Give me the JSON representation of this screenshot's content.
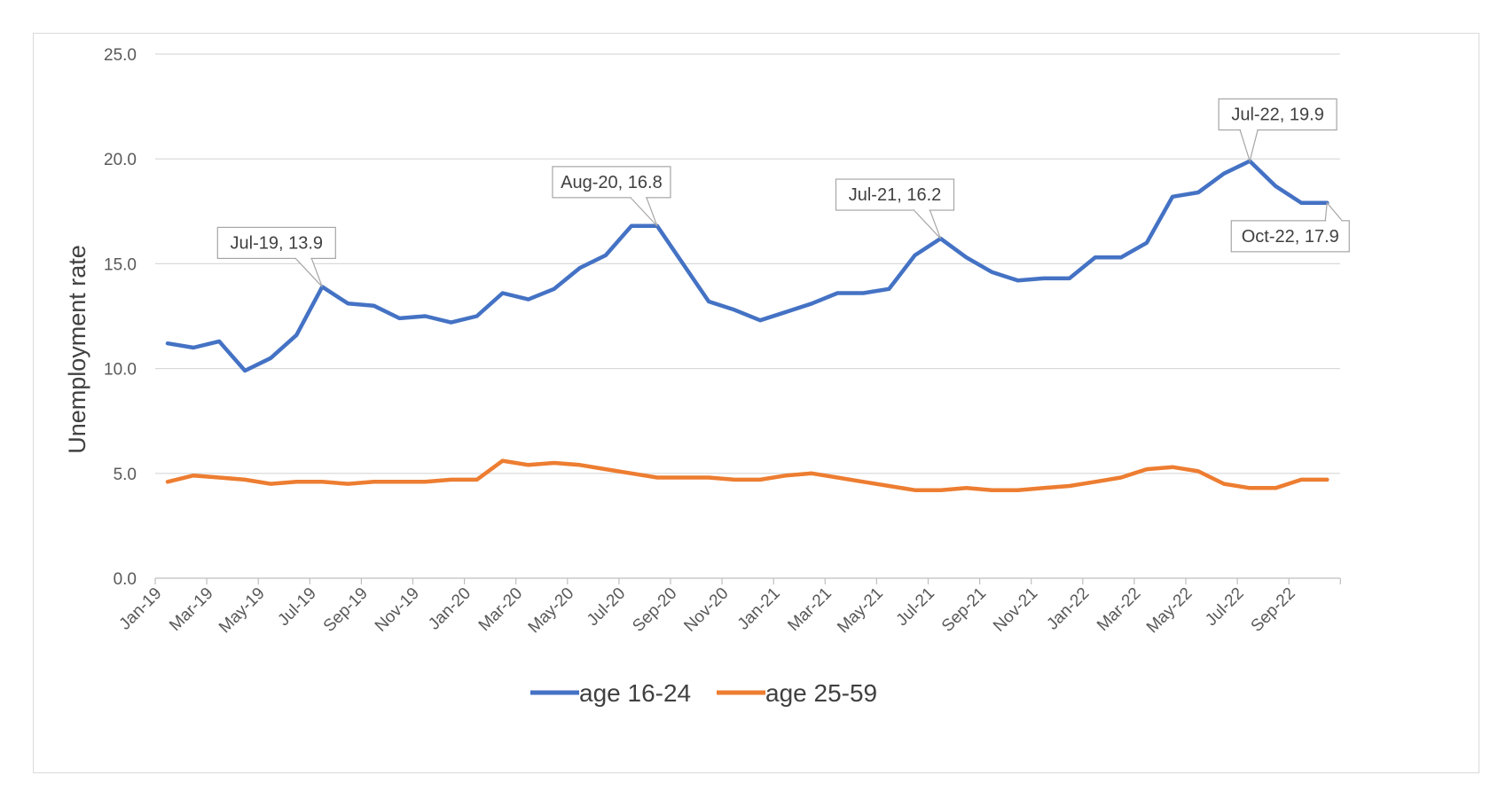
{
  "chart_data": {
    "type": "line",
    "title": "",
    "xlabel": "",
    "ylabel": "Unemployment rate",
    "ylim": [
      0,
      25
    ],
    "yticks": [
      "0.0",
      "5.0",
      "10.0",
      "15.0",
      "20.0",
      "25.0"
    ],
    "grid": "horizontal",
    "legend_position": "bottom",
    "x": [
      "Jan-19",
      "Feb-19",
      "Mar-19",
      "Apr-19",
      "May-19",
      "Jun-19",
      "Jul-19",
      "Aug-19",
      "Sep-19",
      "Oct-19",
      "Nov-19",
      "Dec-19",
      "Jan-20",
      "Feb-20",
      "Mar-20",
      "Apr-20",
      "May-20",
      "Jun-20",
      "Jul-20",
      "Aug-20",
      "Sep-20",
      "Oct-20",
      "Nov-20",
      "Dec-20",
      "Jan-21",
      "Feb-21",
      "Mar-21",
      "Apr-21",
      "May-21",
      "Jun-21",
      "Jul-21",
      "Aug-21",
      "Sep-21",
      "Oct-21",
      "Nov-21",
      "Dec-21",
      "Jan-22",
      "Feb-22",
      "Mar-22",
      "Apr-22",
      "May-22",
      "Jun-22",
      "Jul-22",
      "Aug-22",
      "Sep-22",
      "Oct-22"
    ],
    "xtick_labels": [
      "Jan-19",
      "Mar-19",
      "May-19",
      "Jul-19",
      "Sep-19",
      "Nov-19",
      "Jan-20",
      "Mar-20",
      "May-20",
      "Jul-20",
      "Sep-20",
      "Nov-20",
      "Jan-21",
      "Mar-21",
      "May-21",
      "Jul-21",
      "Sep-21",
      "Nov-21",
      "Jan-22",
      "Mar-22",
      "May-22",
      "Jul-22",
      "Sep-22"
    ],
    "series": [
      {
        "name": "age 16-24",
        "color": "#4472c4",
        "values": [
          11.2,
          11.0,
          11.3,
          9.9,
          10.5,
          11.6,
          13.9,
          13.1,
          13.0,
          12.4,
          12.5,
          12.2,
          12.5,
          13.6,
          13.3,
          13.8,
          14.8,
          15.4,
          16.8,
          16.8,
          15.0,
          13.2,
          12.8,
          12.3,
          12.7,
          13.1,
          13.6,
          13.6,
          13.8,
          15.4,
          16.2,
          15.3,
          14.6,
          14.2,
          14.3,
          14.3,
          15.3,
          15.3,
          16.0,
          18.2,
          18.4,
          19.3,
          19.9,
          18.7,
          17.9,
          17.9
        ]
      },
      {
        "name": "age 25-59",
        "color": "#ed7d31",
        "values": [
          4.6,
          4.9,
          4.8,
          4.7,
          4.5,
          4.6,
          4.6,
          4.5,
          4.6,
          4.6,
          4.6,
          4.7,
          4.7,
          5.6,
          5.4,
          5.5,
          5.4,
          5.2,
          5.0,
          4.8,
          4.8,
          4.8,
          4.7,
          4.7,
          4.9,
          5.0,
          4.8,
          4.6,
          4.4,
          4.2,
          4.2,
          4.3,
          4.2,
          4.2,
          4.3,
          4.4,
          4.6,
          4.8,
          5.2,
          5.3,
          5.1,
          4.5,
          4.3,
          4.3,
          4.7,
          4.7
        ]
      }
    ],
    "annotations": [
      {
        "text": "Jul-19, 13.9",
        "series": 0,
        "point": 6,
        "placement": "above-left"
      },
      {
        "text": "Aug-20, 16.8",
        "series": 0,
        "point": 19,
        "placement": "above-left"
      },
      {
        "text": "Jul-21, 16.2",
        "series": 0,
        "point": 30,
        "placement": "above-left"
      },
      {
        "text": "Jul-22, 19.9",
        "series": 0,
        "point": 42,
        "placement": "above"
      },
      {
        "text": "Oct-22, 17.9",
        "series": 0,
        "point": 45,
        "placement": "below-left"
      }
    ]
  }
}
